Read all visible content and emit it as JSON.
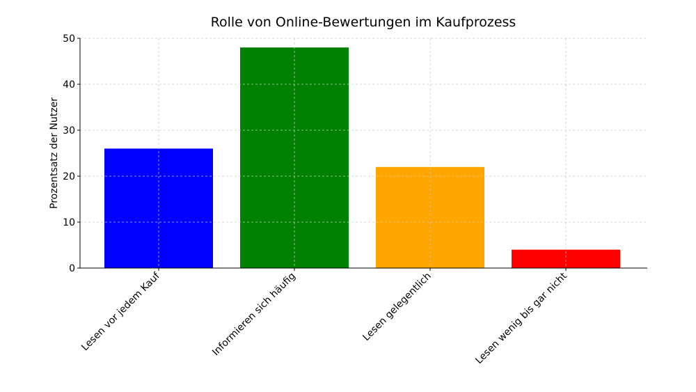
{
  "chart_data": {
    "type": "bar",
    "title": "Rolle von Online-Bewertungen im Kaufprozess",
    "y_label": "Prozentsatz der Nutzer",
    "categories": [
      "Lesen vor jedem Kauf",
      "Informieren sich häufig",
      "Lesen gelegentlich",
      "Lesen wenig bis gar nicht"
    ],
    "values": [
      26,
      48,
      22,
      4
    ],
    "colors": [
      "#0000ff",
      "#008000",
      "#ffa500",
      "#ff0000"
    ],
    "ylim": [
      0,
      50
    ],
    "yticks": [
      0,
      10,
      20,
      30,
      40,
      50
    ],
    "grid": true
  }
}
